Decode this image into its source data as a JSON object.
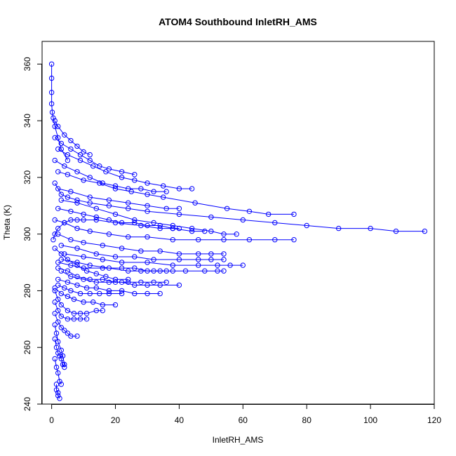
{
  "chart_data": {
    "type": "scatter",
    "title": "ATOM4 Southbound InletRH_AMS",
    "xlabel": "InletRH_AMS",
    "ylabel": "Theta (K)",
    "xlim": [
      -3,
      120
    ],
    "ylim": [
      240,
      368
    ],
    "xticks": [
      0,
      20,
      40,
      60,
      80,
      100,
      120
    ],
    "yticks": [
      240,
      260,
      280,
      300,
      320,
      340,
      360
    ],
    "grid": false,
    "legend": "none",
    "marker": "open-circle",
    "connected_by_lines": true,
    "color": "#0000ff",
    "series": [
      {
        "x": [
          0,
          0,
          0,
          0,
          0.2,
          0.5,
          1,
          2,
          3,
          5
        ],
        "y": [
          360,
          355,
          350,
          346,
          343,
          341,
          338,
          334,
          330,
          326
        ]
      },
      {
        "x": [
          1,
          3,
          5,
          8,
          12,
          18,
          24,
          30,
          40,
          50,
          60,
          70,
          80,
          90,
          100,
          108,
          117
        ],
        "y": [
          318,
          314,
          313,
          312,
          311,
          310,
          309,
          308,
          307,
          306,
          305,
          304,
          303,
          302,
          302,
          301,
          301
        ]
      },
      {
        "x": [
          2,
          5,
          10,
          15,
          20,
          25,
          30,
          35,
          45,
          55,
          62,
          68,
          76
        ],
        "y": [
          322,
          321,
          319,
          318,
          316,
          315,
          314,
          313,
          311,
          309,
          308,
          307,
          307
        ]
      },
      {
        "x": [
          3,
          8,
          14,
          20,
          26,
          32,
          38,
          44,
          50,
          54,
          58
        ],
        "y": [
          312,
          311,
          309,
          307,
          305,
          304,
          303,
          302,
          301,
          300,
          300
        ]
      },
      {
        "x": [
          1,
          4,
          8,
          12,
          18,
          24,
          30,
          38,
          46,
          54,
          62,
          70,
          76
        ],
        "y": [
          305,
          304,
          302,
          301,
          300,
          299,
          299,
          298,
          298,
          298,
          298,
          298,
          298
        ]
      },
      {
        "x": [
          2,
          6,
          10,
          16,
          22,
          28,
          34,
          40,
          46,
          50,
          54
        ],
        "y": [
          300,
          298,
          297,
          296,
          295,
          294,
          294,
          293,
          293,
          293,
          293
        ]
      },
      {
        "x": [
          3,
          8,
          14,
          20,
          26,
          32,
          40,
          46,
          50,
          54
        ],
        "y": [
          296,
          295,
          293,
          292,
          292,
          291,
          291,
          291,
          291,
          291
        ]
      },
      {
        "x": [
          4,
          10,
          16,
          22,
          30,
          38,
          46,
          52,
          56,
          60
        ],
        "y": [
          293,
          292,
          291,
          290,
          290,
          289,
          289,
          289,
          289,
          289
        ]
      },
      {
        "x": [
          3,
          8,
          12,
          18,
          24,
          28,
          32,
          36
        ],
        "y": [
          291,
          290,
          289,
          288,
          287,
          287,
          287,
          287
        ]
      },
      {
        "x": [
          2,
          6,
          10,
          16,
          22,
          26,
          30,
          34,
          38,
          42,
          48,
          52,
          54
        ],
        "y": [
          290,
          289,
          288,
          288,
          288,
          288,
          287,
          287,
          287,
          287,
          287,
          287,
          287
        ]
      },
      {
        "x": [
          2,
          5,
          8,
          12,
          16,
          20,
          24,
          28,
          32,
          36
        ],
        "y": [
          288,
          287,
          285,
          284,
          284,
          283,
          283,
          283,
          283,
          283
        ]
      },
      {
        "x": [
          3,
          6,
          10,
          14,
          18,
          22,
          26,
          30,
          34,
          40
        ],
        "y": [
          287,
          285,
          284,
          283,
          283,
          283,
          282,
          282,
          282,
          282
        ]
      },
      {
        "x": [
          2,
          5,
          8,
          11,
          14,
          18,
          22,
          26,
          30,
          34
        ],
        "y": [
          284,
          283,
          282,
          281,
          281,
          280,
          280,
          279,
          279,
          279
        ]
      },
      {
        "x": [
          2,
          4,
          6,
          9,
          12,
          15,
          18,
          22
        ],
        "y": [
          282,
          281,
          280,
          279,
          279,
          279,
          279,
          279
        ]
      },
      {
        "x": [
          1,
          3,
          5,
          7,
          10,
          13,
          16,
          20
        ],
        "y": [
          281,
          279,
          278,
          277,
          276,
          276,
          275,
          275
        ]
      },
      {
        "x": [
          1,
          2,
          3,
          5,
          7,
          9,
          11,
          14,
          16
        ],
        "y": [
          280,
          277,
          275,
          273,
          272,
          272,
          272,
          273,
          273
        ]
      },
      {
        "x": [
          1,
          2,
          3,
          5,
          7,
          9,
          11
        ],
        "y": [
          276,
          273,
          271,
          270,
          270,
          270,
          270
        ]
      },
      {
        "x": [
          1,
          2,
          3,
          4,
          5,
          6,
          8
        ],
        "y": [
          272,
          269,
          267,
          266,
          265,
          264,
          264
        ]
      },
      {
        "x": [
          1,
          1.5,
          2,
          3,
          3.5,
          4
        ],
        "y": [
          268,
          265,
          262,
          259,
          257,
          254
        ]
      },
      {
        "x": [
          1,
          1.5,
          2,
          2.5,
          3,
          3.5,
          4
        ],
        "y": [
          263,
          260,
          258,
          257,
          256,
          254,
          253
        ]
      },
      {
        "x": [
          1,
          1.5,
          2,
          2.5,
          3
        ],
        "y": [
          256,
          253,
          251,
          248,
          247
        ]
      },
      {
        "x": [
          1.5,
          1.5,
          2,
          2,
          2.5
        ],
        "y": [
          247,
          245,
          244,
          243,
          242
        ]
      },
      {
        "x": [
          0.5,
          1,
          2,
          4,
          6,
          8,
          10,
          14,
          20,
          28,
          34,
          38,
          44,
          48
        ],
        "y": [
          298,
          300,
          302,
          304,
          305,
          305,
          305,
          305,
          304,
          303,
          302,
          302,
          301,
          301
        ]
      },
      {
        "x": [
          1,
          4,
          8,
          12,
          16,
          20,
          24,
          28,
          32,
          36
        ],
        "y": [
          326,
          324,
          322,
          320,
          318,
          317,
          316,
          316,
          315,
          315
        ]
      },
      {
        "x": [
          2,
          5,
          9,
          13,
          17,
          22,
          26,
          30,
          35,
          40,
          44
        ],
        "y": [
          330,
          328,
          326,
          324,
          322,
          320,
          319,
          318,
          317,
          316,
          316
        ]
      },
      {
        "x": [
          1,
          3,
          6,
          9,
          12,
          15,
          18,
          22,
          26
        ],
        "y": [
          334,
          332,
          330,
          328,
          326,
          324,
          323,
          322,
          321
        ]
      },
      {
        "x": [
          1,
          2,
          4,
          6,
          8,
          10,
          12
        ],
        "y": [
          340,
          338,
          335,
          333,
          331,
          329,
          328
        ]
      },
      {
        "x": [
          2,
          6,
          10,
          14,
          18,
          22,
          26,
          30,
          34,
          38,
          40
        ],
        "y": [
          309,
          308,
          307,
          306,
          305,
          304,
          304,
          303,
          303,
          302,
          302
        ]
      },
      {
        "x": [
          2,
          6,
          12,
          18,
          24,
          30,
          36,
          40
        ],
        "y": [
          316,
          315,
          313,
          312,
          311,
          310,
          309,
          309
        ]
      },
      {
        "x": [
          1,
          3,
          5,
          8,
          11,
          14,
          17,
          20,
          24
        ],
        "y": [
          295,
          293,
          291,
          289,
          287,
          286,
          285,
          284,
          284
        ]
      }
    ]
  }
}
